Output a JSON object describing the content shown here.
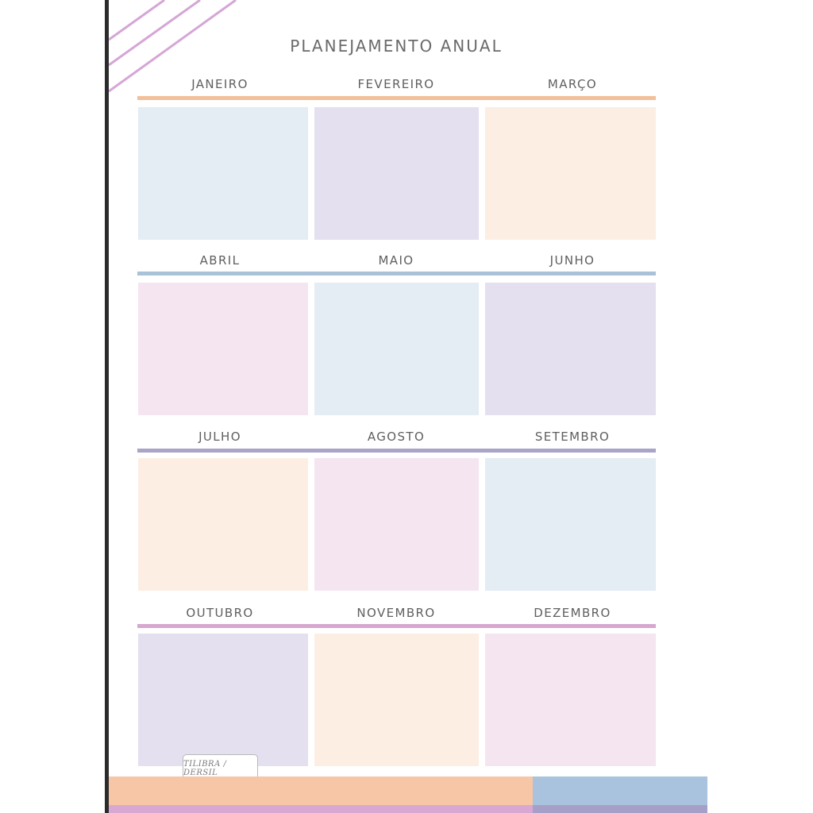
{
  "title": "PLANEJAMENTO ANUAL",
  "logo_text": "TILIBRA / DERSIL",
  "colors": {
    "orange_rule": "#f2c09b",
    "blue_rule": "#a9c2d8",
    "lavender_rule": "#a9a4c8",
    "pink_rule": "#d6a7cf",
    "box_blue": "#e4ecf4",
    "box_lavender": "#e4e0f0",
    "box_peach": "#fdeee4",
    "box_pink": "#f5e5f0",
    "stripe": "#d5a6d6"
  },
  "months": [
    "JANEIRO",
    "FEVEREIRO",
    "MARÇO",
    "ABRIL",
    "MAIO",
    "JUNHO",
    "JULHO",
    "AGOSTO",
    "SETEMBRO",
    "OUTUBRO",
    "NOVEMBRO",
    "DEZEMBRO"
  ]
}
